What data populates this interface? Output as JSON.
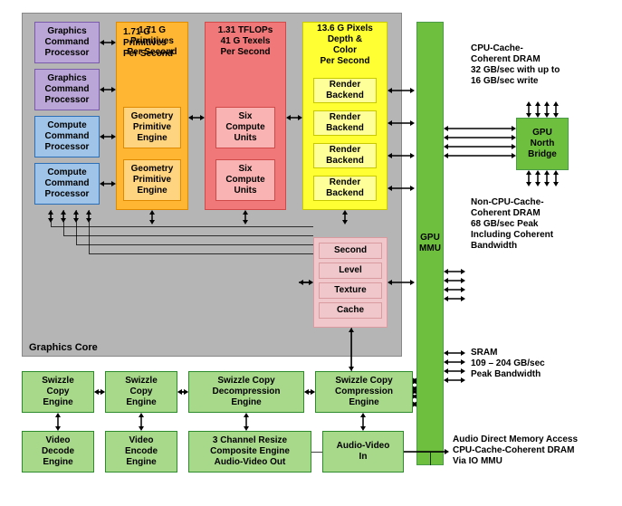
{
  "colors": {
    "gray": "#b5b5b5",
    "purple_border": "#7a5aaa",
    "purple_fill": "#bba7d7",
    "blue_border": "#2d6fb7",
    "blue_fill": "#9fc4e7",
    "orange_border": "#e08a00",
    "orange_fill": "#ffb733",
    "orange_inner": "#ffd480",
    "red_border": "#d14a4a",
    "red_fill": "#f07878",
    "red_inner": "#f9b3b3",
    "yellow_border": "#c9c900",
    "yellow_fill": "#ffff33",
    "yellow_inner": "#ffff99",
    "green_border": "#4a9a4a",
    "green_fill": "#6fbf3f",
    "green_inner": "#a8d98a",
    "green_dark": "#2d8a2d",
    "pink_border": "#d99aa0",
    "pink_fill": "#f0c8cc",
    "black": "#000000"
  },
  "graphics_core_label": "Graphics Core",
  "processors": [
    {
      "label": "Graphics\nCommand\nProcessor",
      "type": "purple"
    },
    {
      "label": "Graphics\nCommand\nProcessor",
      "type": "purple"
    },
    {
      "label": "Compute\nCommand\nProcessor",
      "type": "blue"
    },
    {
      "label": "Compute\nCommand\nProcessor",
      "type": "blue"
    }
  ],
  "orange_block": {
    "title": "1.71 G\nPrimitives\nPer Second",
    "inner": [
      "Geometry\nPrimitive\nEngine",
      "Geometry\nPrimitive\nEngine"
    ]
  },
  "red_block": {
    "title": "1.31 TFLOPs\n41 G Texels\nPer Second",
    "inner": [
      "Six\nCompute\nUnits",
      "Six\nCompute\nUnits"
    ]
  },
  "yellow_block": {
    "title": "13.6 G Pixels\nDepth &\nColor\nPer Second",
    "inner": [
      "Render\nBackend",
      "Render\nBackend",
      "Render\nBackend",
      "Render\nBackend"
    ]
  },
  "cache_block": [
    "Second",
    "Level",
    "Texture",
    "Cache"
  ],
  "gpu_mmu": "GPU\nMMU",
  "gpu_north": "GPU\nNorth\nBridge",
  "swizzle": [
    "Swizzle\nCopy\nEngine",
    "Swizzle\nCopy\nEngine",
    "Swizzle Copy\nDecompression\nEngine",
    "Swizzle Copy\nCompression\nEngine"
  ],
  "bottom_row": [
    "Video\nDecode\nEngine",
    "Video\nEncode\nEngine",
    "3 Channel Resize\nComposite Engine\nAudio-Video Out",
    "Audio-Video\nIn"
  ],
  "text_cpu_cache": "CPU-Cache-\nCoherent DRAM\n32 GB/sec with up to\n16 GB/sec write",
  "text_non_cpu": "Non-CPU-Cache-\nCoherent DRAM\n68 GB/sec Peak\nIncluding Coherent\nBandwidth",
  "text_sram": "SRAM\n109 – 204 GB/sec\nPeak Bandwidth",
  "text_audio": "Audio Direct Memory Access\nCPU-Cache-Coherent DRAM\nVia IO MMU"
}
